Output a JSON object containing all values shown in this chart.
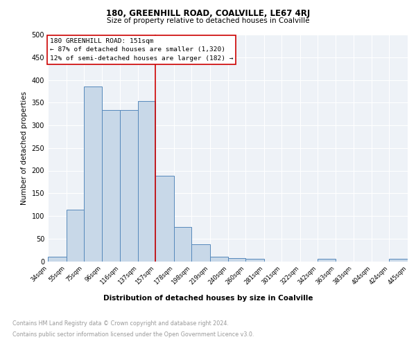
{
  "title1": "180, GREENHILL ROAD, COALVILLE, LE67 4RJ",
  "title2": "Size of property relative to detached houses in Coalville",
  "xlabel": "Distribution of detached houses by size in Coalville",
  "ylabel": "Number of detached properties",
  "footnote1": "Contains HM Land Registry data © Crown copyright and database right 2024.",
  "footnote2": "Contains public sector information licensed under the Open Government Licence v3.0.",
  "annotation_line1": "180 GREENHILL ROAD: 151sqm",
  "annotation_line2": "← 87% of detached houses are smaller (1,320)",
  "annotation_line3": "12% of semi-detached houses are larger (182) →",
  "bar_left_edges": [
    34,
    55,
    75,
    96,
    116,
    137,
    157,
    178,
    198,
    219,
    240,
    260,
    281,
    301,
    322,
    342,
    363,
    383,
    404,
    424
  ],
  "bar_widths": [
    21,
    20,
    21,
    20,
    21,
    20,
    21,
    20,
    21,
    21,
    20,
    21,
    20,
    21,
    20,
    21,
    20,
    21,
    20,
    21
  ],
  "bar_heights": [
    10,
    114,
    386,
    333,
    333,
    354,
    188,
    75,
    38,
    10,
    7,
    5,
    0,
    0,
    0,
    5,
    0,
    0,
    0,
    5
  ],
  "x_tick_labels": [
    "34sqm",
    "55sqm",
    "75sqm",
    "96sqm",
    "116sqm",
    "137sqm",
    "157sqm",
    "178sqm",
    "198sqm",
    "219sqm",
    "240sqm",
    "260sqm",
    "281sqm",
    "301sqm",
    "322sqm",
    "342sqm",
    "363sqm",
    "383sqm",
    "404sqm",
    "424sqm",
    "445sqm"
  ],
  "x_tick_positions": [
    34,
    55,
    75,
    96,
    116,
    137,
    157,
    178,
    198,
    219,
    240,
    260,
    281,
    301,
    322,
    342,
    363,
    383,
    404,
    424,
    445
  ],
  "ylim": [
    0,
    500
  ],
  "xlim": [
    34,
    445
  ],
  "bar_color": "#c8d8e8",
  "bar_edge_color": "#5588bb",
  "vline_x": 157,
  "vline_color": "#cc0000",
  "bg_color": "#eef2f7",
  "annotation_box_color": "#ffffff",
  "annotation_box_edge": "#cc0000"
}
